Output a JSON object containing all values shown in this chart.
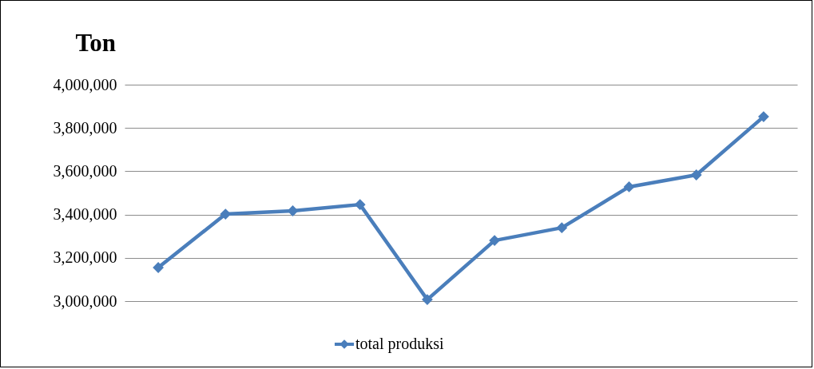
{
  "chart_data": {
    "type": "line",
    "ylabel": "Ton",
    "categories": [
      null,
      null,
      null,
      null,
      null,
      null,
      null,
      null,
      null,
      null
    ],
    "series": [
      {
        "name": "total produksi",
        "color": "#4a7ebb",
        "values": [
          3155000,
          3402000,
          3417000,
          3446000,
          3007000,
          3280000,
          3339000,
          3528000,
          3583000,
          3852000
        ]
      }
    ],
    "ylim": [
      3000000,
      4000000
    ],
    "yticks": [
      {
        "value": 3000000,
        "label": "3,000,000"
      },
      {
        "value": 3200000,
        "label": "3,200,000"
      },
      {
        "value": 3400000,
        "label": "3,400,000"
      },
      {
        "value": 3600000,
        "label": "3,600,000"
      },
      {
        "value": 3800000,
        "label": "3,800,000"
      },
      {
        "value": 4000000,
        "label": "4,000,000"
      }
    ],
    "grid": "y",
    "legend": "bottom",
    "marker": "diamond",
    "line_style": "solid",
    "tick_labels": "y"
  }
}
